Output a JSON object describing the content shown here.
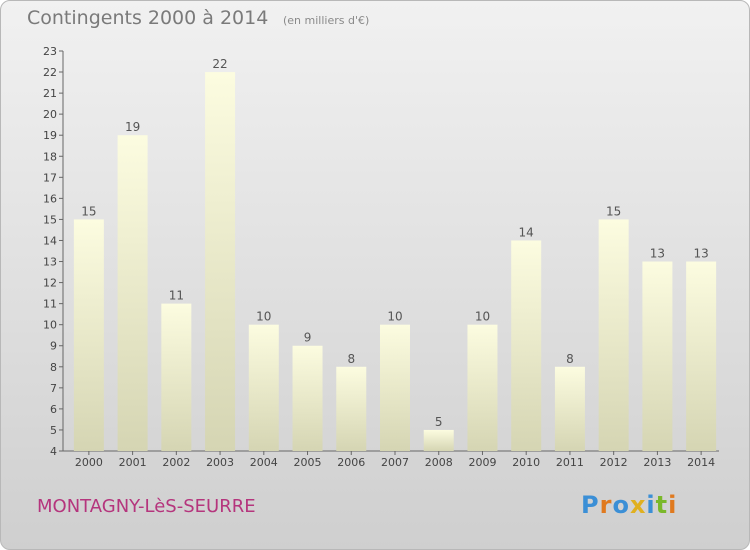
{
  "header": {
    "title": "Contingents 2000 à 2014",
    "subtitle": "(en milliers d'€)"
  },
  "footer": {
    "commune": "MONTAGNY-LèS-SEURRE",
    "logo_text": "Proxiti"
  },
  "colors": {
    "bar_top": "#fcfce0",
    "bar_bottom": "#d5d5b3",
    "commune": "#b5357d",
    "logo": [
      "#3b8fd6",
      "#e07a1f",
      "#3b8fd6",
      "#e0b01f",
      "#3b8fd6",
      "#7ab82a",
      "#e07a1f"
    ]
  },
  "chart_data": {
    "type": "bar",
    "categories": [
      "2000",
      "2001",
      "2002",
      "2003",
      "2004",
      "2005",
      "2006",
      "2007",
      "2008",
      "2009",
      "2010",
      "2011",
      "2012",
      "2013",
      "2014"
    ],
    "values": [
      15,
      19,
      11,
      22,
      10,
      9,
      8,
      10,
      5,
      10,
      14,
      8,
      15,
      13,
      13
    ],
    "ylim": [
      4,
      23
    ],
    "yticks": [
      4,
      5,
      6,
      7,
      8,
      9,
      10,
      11,
      12,
      13,
      14,
      15,
      16,
      17,
      18,
      19,
      20,
      21,
      22,
      23
    ],
    "grid": false,
    "data_labels": true
  }
}
